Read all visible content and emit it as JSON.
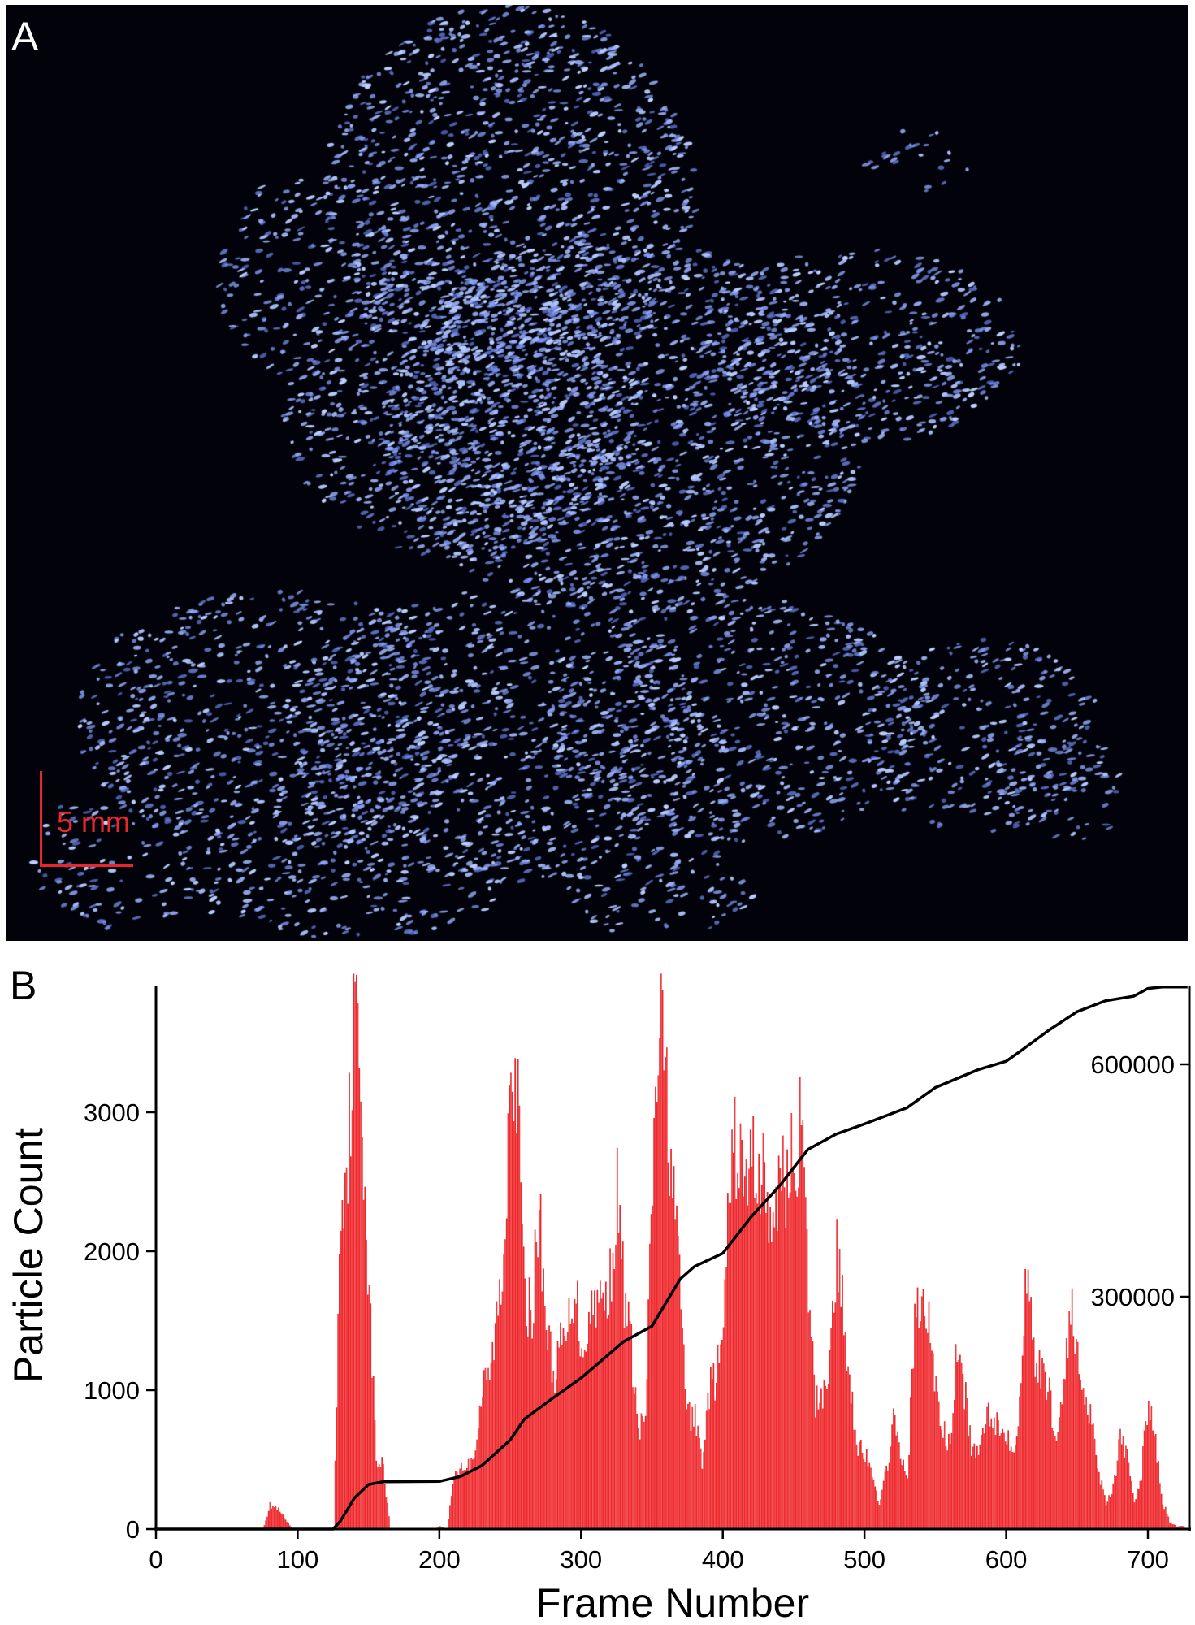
{
  "panel_a": {
    "letter": "A",
    "scale_bar_label": "5 mm",
    "colors": {
      "background": "#02030a",
      "particles": "#4f6bff",
      "scale_bar": "#e8262b"
    }
  },
  "panel_b": {
    "letter": "B"
  },
  "chart_data": {
    "type": "bar",
    "xlabel": "Frame Number",
    "ylabel": "Particle Count",
    "xlim": [
      0,
      728
    ],
    "ylim": [
      0,
      3900
    ],
    "y2lim": [
      0,
      705000
    ],
    "x_ticks": [
      "0",
      "100",
      "200",
      "300",
      "400",
      "500",
      "600",
      "700"
    ],
    "y_ticks": [
      "0",
      "1000",
      "2000",
      "3000"
    ],
    "y2_ticks": [
      "300000",
      "600000"
    ],
    "grid": false,
    "colors": {
      "bars": "#ee2a2e",
      "cumulative_line": "#000000"
    },
    "histogram": {
      "frame_step": 5,
      "frames_start": 0,
      "values": [
        0,
        0,
        0,
        0,
        0,
        0,
        0,
        0,
        0,
        0,
        0,
        0,
        0,
        0,
        0,
        0,
        170,
        150,
        80,
        10,
        5,
        5,
        5,
        5,
        5,
        5,
        2400,
        2700,
        3800,
        3000,
        1700,
        500,
        450,
        0,
        0,
        0,
        0,
        0,
        0,
        0,
        20,
        0,
        400,
        450,
        450,
        600,
        1000,
        1100,
        1500,
        1900,
        3700,
        3000,
        1600,
        1600,
        2300,
        1500,
        1100,
        1300,
        1400,
        1800,
        1300,
        1500,
        1700,
        1600,
        1800,
        2400,
        1700,
        1300,
        700,
        800,
        2500,
        3700,
        3100,
        2400,
        1600,
        800,
        800,
        500,
        1000,
        1100,
        1400,
        2600,
        2800,
        2400,
        2700,
        2600,
        2500,
        2000,
        2700,
        2500,
        2700,
        2900,
        1700,
        900,
        1000,
        1200,
        2000,
        1500,
        1000,
        600,
        550,
        350,
        200,
        400,
        800,
        500,
        400,
        1500,
        1600,
        1500,
        1000,
        700,
        600,
        1300,
        1000,
        600,
        500,
        850,
        850,
        700,
        700,
        600,
        1000,
        2100,
        1200,
        1100,
        1000,
        600,
        1100,
        1600,
        1200,
        1000,
        800,
        400,
        200,
        300,
        650,
        500,
        200,
        400,
        1000,
        600,
        200,
        50,
        20,
        20
      ]
    },
    "cumulative": {
      "axis": "right",
      "points": [
        [
          0,
          0
        ],
        [
          125,
          0
        ],
        [
          130,
          10000
        ],
        [
          140,
          40000
        ],
        [
          150,
          57600
        ],
        [
          160,
          61000
        ],
        [
          200,
          61600
        ],
        [
          215,
          68000
        ],
        [
          230,
          82000
        ],
        [
          250,
          115000
        ],
        [
          260,
          142000
        ],
        [
          280,
          169000
        ],
        [
          300,
          195000
        ],
        [
          330,
          242000
        ],
        [
          350,
          262000
        ],
        [
          370,
          323000
        ],
        [
          380,
          339000
        ],
        [
          400,
          356000
        ],
        [
          420,
          403000
        ],
        [
          440,
          443000
        ],
        [
          460,
          490000
        ],
        [
          480,
          510000
        ],
        [
          500,
          523000
        ],
        [
          530,
          544000
        ],
        [
          550,
          570000
        ],
        [
          580,
          593000
        ],
        [
          600,
          604000
        ],
        [
          610,
          617000
        ],
        [
          630,
          644000
        ],
        [
          650,
          668000
        ],
        [
          670,
          682000
        ],
        [
          690,
          688000
        ],
        [
          700,
          698000
        ],
        [
          710,
          700000
        ],
        [
          728,
          700000
        ]
      ]
    }
  }
}
